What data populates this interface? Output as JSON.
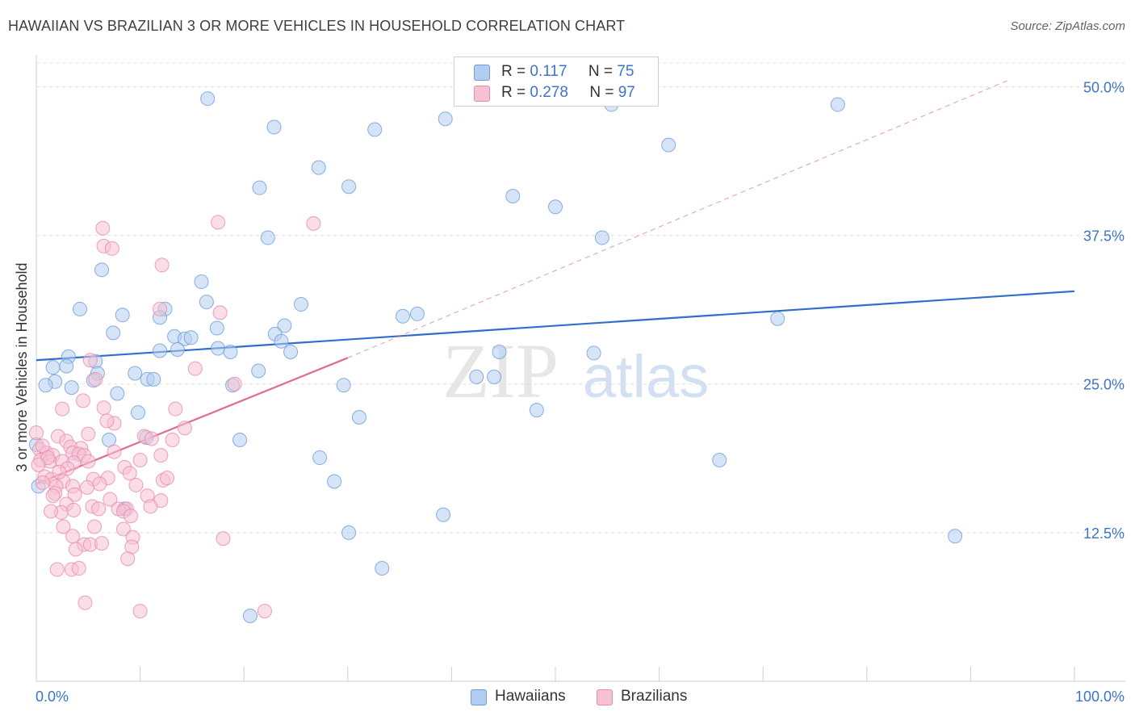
{
  "title": "HAWAIIAN VS BRAZILIAN 3 OR MORE VEHICLES IN HOUSEHOLD CORRELATION CHART",
  "source": "Source: ZipAtlas.com",
  "watermark": {
    "zip": "ZIP",
    "atlas": "atlas"
  },
  "legend": {
    "hawaiians": {
      "r_label": "R = ",
      "r_value": "0.117",
      "n_label": "N = ",
      "n_value": "75"
    },
    "brazilians": {
      "r_label": "R = ",
      "r_value": "0.278",
      "n_label": "N = ",
      "n_value": "97"
    }
  },
  "colors": {
    "hawaiians_fill": "#b3cdf0",
    "hawaiians_stroke": "#6f9bd8",
    "hawaiians_line": "#2f6fc9",
    "brazilians_fill": "#f6c1d3",
    "brazilians_stroke": "#e88aab",
    "brazilians_line": "#e06a94",
    "grid": "#e0e0e0",
    "tick_label": "#3d74c6"
  },
  "chart_data": {
    "type": "scatter",
    "title": "HAWAIIAN VS BRAZILIAN 3 OR MORE VEHICLES IN HOUSEHOLD CORRELATION CHART",
    "xlabel": "",
    "ylabel": "3 or more Vehicles in Household",
    "x_tick_labels": [
      "0.0%",
      "100.0%"
    ],
    "y_tick_labels": [
      "12.5%",
      "25.0%",
      "37.5%",
      "50.0%"
    ],
    "y_ticks": [
      12.5,
      25.0,
      37.5,
      50.0
    ],
    "xlim": [
      0,
      100
    ],
    "ylim": [
      0,
      52
    ],
    "legend_position": "bottom-center",
    "series": [
      {
        "name": "Hawaiians",
        "r": 0.117,
        "n": 75,
        "trend": {
          "x0": 0,
          "y0": 27.0,
          "x1": 100,
          "y1": 32.8,
          "dashed_extension": false
        },
        "points": [
          [
            16.5,
            49.0
          ],
          [
            22.9,
            46.6
          ],
          [
            32.6,
            46.4
          ],
          [
            39.4,
            47.3
          ],
          [
            60.9,
            45.1
          ],
          [
            55.4,
            48.5
          ],
          [
            77.2,
            48.5
          ],
          [
            27.2,
            43.2
          ],
          [
            21.5,
            41.5
          ],
          [
            30.1,
            41.6
          ],
          [
            45.9,
            40.8
          ],
          [
            50.0,
            39.9
          ],
          [
            22.3,
            37.3
          ],
          [
            54.5,
            37.3
          ],
          [
            6.3,
            34.6
          ],
          [
            15.9,
            33.6
          ],
          [
            16.4,
            31.9
          ],
          [
            25.5,
            31.7
          ],
          [
            4.2,
            31.3
          ],
          [
            8.3,
            30.8
          ],
          [
            12.4,
            31.3
          ],
          [
            11.9,
            30.6
          ],
          [
            35.3,
            30.7
          ],
          [
            36.7,
            30.9
          ],
          [
            71.4,
            30.5
          ],
          [
            17.4,
            29.7
          ],
          [
            7.4,
            29.3
          ],
          [
            23.9,
            29.9
          ],
          [
            23.0,
            29.2
          ],
          [
            13.3,
            29.0
          ],
          [
            14.3,
            28.8
          ],
          [
            14.9,
            28.9
          ],
          [
            23.6,
            28.6
          ],
          [
            13.6,
            27.9
          ],
          [
            11.9,
            27.8
          ],
          [
            17.5,
            28.0
          ],
          [
            18.7,
            27.7
          ],
          [
            24.5,
            27.7
          ],
          [
            44.6,
            27.7
          ],
          [
            3.1,
            27.3
          ],
          [
            53.7,
            27.6
          ],
          [
            1.6,
            26.4
          ],
          [
            2.9,
            26.5
          ],
          [
            5.7,
            26.9
          ],
          [
            21.4,
            26.1
          ],
          [
            5.9,
            25.9
          ],
          [
            9.5,
            25.9
          ],
          [
            10.7,
            25.4
          ],
          [
            11.3,
            25.4
          ],
          [
            5.5,
            25.3
          ],
          [
            1.8,
            25.2
          ],
          [
            0.9,
            24.9
          ],
          [
            3.4,
            24.7
          ],
          [
            18.9,
            24.9
          ],
          [
            29.6,
            24.9
          ],
          [
            42.4,
            25.6
          ],
          [
            44.1,
            25.6
          ],
          [
            7.8,
            24.2
          ],
          [
            9.8,
            22.6
          ],
          [
            31.1,
            22.2
          ],
          [
            48.2,
            22.8
          ],
          [
            10.6,
            20.5
          ],
          [
            7.0,
            20.3
          ],
          [
            19.6,
            20.3
          ],
          [
            0.0,
            19.9
          ],
          [
            27.3,
            18.8
          ],
          [
            65.8,
            18.6
          ],
          [
            28.7,
            16.8
          ],
          [
            8.5,
            14.5
          ],
          [
            39.2,
            14.0
          ],
          [
            30.1,
            12.5
          ],
          [
            88.5,
            12.2
          ],
          [
            33.3,
            9.5
          ],
          [
            20.6,
            5.5
          ],
          [
            0.2,
            16.4
          ]
        ]
      },
      {
        "name": "Brazilians",
        "r": 0.278,
        "n": 97,
        "trend": {
          "x0": 0,
          "y0": 16.6,
          "x1": 30,
          "y1": 27.2,
          "dashed_to_x": 93.5,
          "dashed_to_y": 50.5
        },
        "points": [
          [
            17.5,
            38.6
          ],
          [
            26.7,
            38.5
          ],
          [
            6.4,
            38.1
          ],
          [
            6.5,
            36.6
          ],
          [
            7.3,
            36.4
          ],
          [
            12.1,
            35.0
          ],
          [
            11.9,
            31.3
          ],
          [
            17.7,
            31.0
          ],
          [
            5.2,
            27.0
          ],
          [
            15.3,
            26.3
          ],
          [
            5.7,
            25.4
          ],
          [
            19.1,
            25.0
          ],
          [
            4.5,
            23.6
          ],
          [
            2.5,
            22.9
          ],
          [
            6.5,
            23.0
          ],
          [
            13.4,
            22.9
          ],
          [
            7.5,
            21.7
          ],
          [
            14.3,
            21.3
          ],
          [
            5.0,
            20.8
          ],
          [
            2.1,
            20.6
          ],
          [
            10.4,
            20.6
          ],
          [
            11.1,
            20.4
          ],
          [
            13.1,
            20.3
          ],
          [
            2.9,
            20.2
          ],
          [
            3.3,
            19.7
          ],
          [
            4.3,
            19.6
          ],
          [
            0.0,
            20.9
          ],
          [
            0.3,
            19.5
          ],
          [
            1.0,
            19.2
          ],
          [
            1.6,
            19.0
          ],
          [
            3.5,
            19.2
          ],
          [
            4.1,
            19.1
          ],
          [
            4.6,
            19.0
          ],
          [
            7.5,
            19.3
          ],
          [
            12.0,
            19.0
          ],
          [
            0.4,
            18.6
          ],
          [
            1.3,
            18.5
          ],
          [
            2.5,
            18.5
          ],
          [
            3.6,
            18.4
          ],
          [
            5.0,
            18.5
          ],
          [
            3.0,
            17.9
          ],
          [
            8.5,
            18.0
          ],
          [
            9.0,
            17.5
          ],
          [
            0.8,
            17.2
          ],
          [
            1.5,
            17.0
          ],
          [
            2.6,
            16.8
          ],
          [
            5.5,
            17.0
          ],
          [
            6.9,
            17.1
          ],
          [
            0.6,
            16.7
          ],
          [
            1.9,
            16.4
          ],
          [
            3.5,
            16.4
          ],
          [
            12.2,
            16.9
          ],
          [
            1.8,
            15.8
          ],
          [
            3.7,
            15.7
          ],
          [
            10.7,
            15.6
          ],
          [
            7.1,
            15.3
          ],
          [
            1.6,
            15.6
          ],
          [
            12.0,
            15.2
          ],
          [
            5.4,
            14.7
          ],
          [
            2.9,
            14.9
          ],
          [
            8.7,
            14.5
          ],
          [
            11.0,
            14.7
          ],
          [
            2.4,
            14.2
          ],
          [
            3.6,
            14.4
          ],
          [
            6.0,
            14.5
          ],
          [
            7.9,
            14.5
          ],
          [
            8.4,
            14.3
          ],
          [
            9.1,
            13.9
          ],
          [
            2.6,
            13.0
          ],
          [
            5.6,
            13.0
          ],
          [
            8.4,
            12.8
          ],
          [
            3.5,
            12.2
          ],
          [
            9.3,
            12.1
          ],
          [
            18.0,
            12.0
          ],
          [
            4.6,
            11.5
          ],
          [
            5.2,
            11.5
          ],
          [
            6.3,
            11.6
          ],
          [
            9.2,
            11.3
          ],
          [
            3.8,
            11.1
          ],
          [
            2.0,
            9.4
          ],
          [
            3.4,
            9.4
          ],
          [
            8.8,
            10.3
          ],
          [
            4.1,
            9.5
          ],
          [
            4.7,
            6.6
          ],
          [
            10.0,
            5.9
          ],
          [
            22.0,
            5.9
          ],
          [
            0.6,
            19.8
          ],
          [
            1.1,
            18.8
          ],
          [
            2.2,
            17.6
          ],
          [
            4.9,
            16.3
          ],
          [
            6.1,
            16.6
          ],
          [
            10.0,
            18.6
          ],
          [
            1.4,
            14.3
          ],
          [
            6.8,
            21.9
          ],
          [
            12.6,
            17.1
          ],
          [
            0.2,
            18.2
          ],
          [
            9.6,
            16.5
          ]
        ]
      }
    ]
  }
}
